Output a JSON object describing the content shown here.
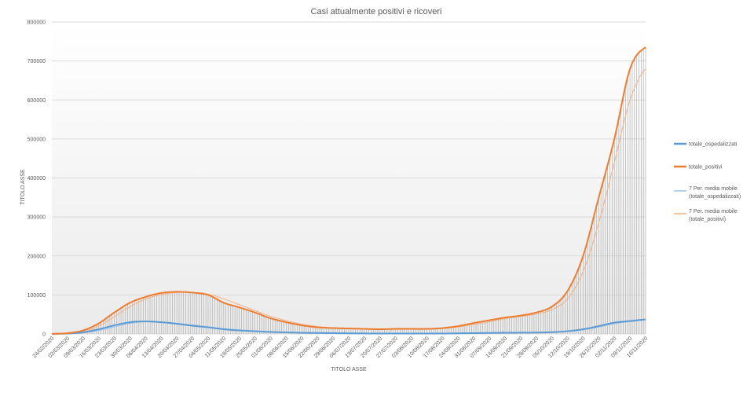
{
  "chart_data": {
    "type": "line",
    "title": "Casi attualmente positivi e ricoveri",
    "xlabel": "TITOLO ASSE",
    "ylabel": "TITOLO ASSE",
    "ylim": [
      0,
      800000
    ],
    "y_ticks": [
      "0",
      "100000",
      "200000",
      "300000",
      "400000",
      "500000",
      "600000",
      "700000",
      "800000"
    ],
    "y_tick_values": [
      0,
      100000,
      200000,
      300000,
      400000,
      500000,
      600000,
      700000,
      800000
    ],
    "x_tick_labels": [
      "24/02/2020",
      "02/03/2020",
      "09/03/2020",
      "16/03/2020",
      "23/03/2020",
      "30/03/2020",
      "06/04/2020",
      "13/04/2020",
      "20/04/2020",
      "27/04/2020",
      "04/05/2020",
      "11/05/2020",
      "18/05/2020",
      "25/05/2020",
      "01/06/2020",
      "08/06/2020",
      "15/06/2020",
      "22/06/2020",
      "29/06/2020",
      "06/07/2020",
      "13/07/2020",
      "20/07/2020",
      "27/07/2020",
      "03/08/2020",
      "10/08/2020",
      "17/08/2020",
      "24/08/2020",
      "31/08/2020",
      "07/09/2020",
      "14/09/2020",
      "21/09/2020",
      "28/09/2020",
      "05/10/2020",
      "12/10/2020",
      "19/10/2020",
      "26/10/2020",
      "02/11/2020",
      "09/11/2020",
      "16/11/2020"
    ],
    "grid": true,
    "legend_position": "right",
    "drop_lines": true,
    "series": [
      {
        "name": "totale_ospedalizzati",
        "color": "#5b9bd5",
        "width": 2,
        "values": [
          200,
          1000,
          4000,
          12000,
          22000,
          30000,
          32000,
          30000,
          26000,
          21000,
          17000,
          12000,
          9000,
          7000,
          5000,
          4000,
          3000,
          2500,
          2000,
          1500,
          1200,
          1000,
          1000,
          1000,
          1000,
          1000,
          1500,
          2000,
          2500,
          3000,
          3200,
          3500,
          4500,
          7000,
          12000,
          20000,
          29000,
          33000,
          37000
        ]
      },
      {
        "name": "totale_positivi",
        "color": "#ed7d31",
        "width": 2,
        "values": [
          200,
          2000,
          9000,
          27000,
          55000,
          80000,
          95000,
          105000,
          108000,
          106000,
          100000,
          80000,
          68000,
          55000,
          40000,
          30000,
          22000,
          17000,
          15000,
          14000,
          13000,
          12000,
          13000,
          13000,
          13000,
          15000,
          20000,
          28000,
          35000,
          42000,
          47000,
          55000,
          70000,
          110000,
          200000,
          350000,
          500000,
          680000,
          735000
        ]
      },
      {
        "name": "7 Per. media mobile (totale_ospedalizzati)",
        "color": "#9dc3e6",
        "width": 1,
        "values": [
          100,
          700,
          3000,
          9000,
          18000,
          27000,
          31500,
          31000,
          27500,
          23000,
          18500,
          13500,
          10000,
          7500,
          5500,
          4200,
          3200,
          2600,
          2100,
          1600,
          1300,
          1050,
          1000,
          1000,
          1000,
          1000,
          1300,
          1800,
          2300,
          2800,
          3100,
          3400,
          4200,
          6200,
          10500,
          17500,
          26500,
          31500,
          36000
        ]
      },
      {
        "name": "7 Per. media mobile (totale_positivi)",
        "color": "#f4b183",
        "width": 1,
        "values": [
          100,
          1500,
          6000,
          20000,
          44000,
          70000,
          89000,
          101000,
          106000,
          106500,
          102000,
          90000,
          75000,
          60000,
          45000,
          34000,
          25000,
          19000,
          16000,
          14500,
          13500,
          12500,
          12500,
          13000,
          13000,
          14000,
          18000,
          24000,
          31000,
          39000,
          45000,
          51000,
          62000,
          90000,
          160000,
          285000,
          440000,
          600000,
          680000
        ]
      }
    ]
  }
}
